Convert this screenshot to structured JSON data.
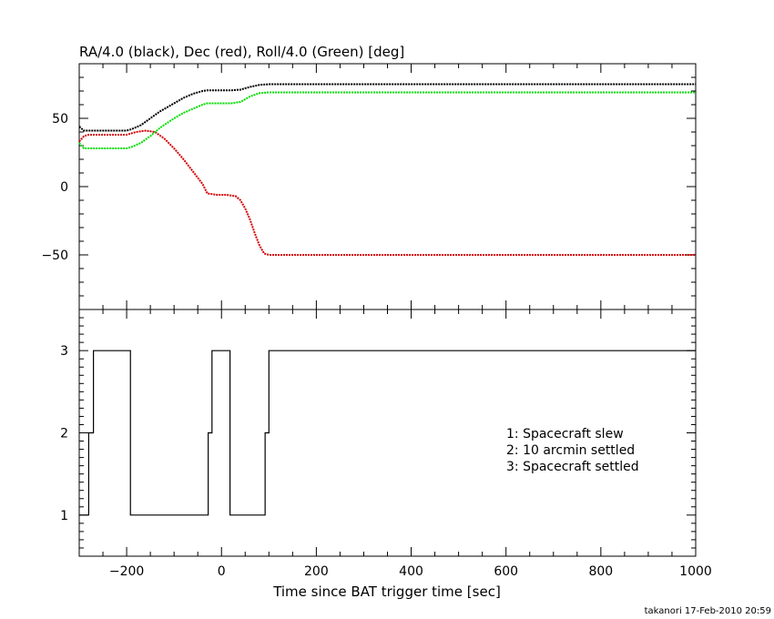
{
  "chart_data": [
    {
      "type": "line",
      "title": "RA/4.0 (black), Dec (red), Roll/4.0 (Green) [deg]",
      "xlabel": "",
      "ylabel": "",
      "xlim": [
        -300,
        1000
      ],
      "ylim": [
        -90,
        90
      ],
      "yticks": [
        50,
        0,
        -50
      ],
      "grid": false,
      "series": [
        {
          "color": "#000000",
          "x": [
            -300,
            -290,
            -280,
            -200,
            -190,
            -170,
            -150,
            -130,
            -100,
            -80,
            -60,
            -40,
            -30,
            -20,
            0,
            20,
            40,
            50,
            60,
            80,
            100,
            200,
            400,
            600,
            800,
            1000
          ],
          "y": [
            44,
            41,
            41,
            41,
            42,
            45,
            50,
            55,
            61,
            65,
            68,
            70,
            70.5,
            70.5,
            70.5,
            70.5,
            71,
            72,
            73,
            74.5,
            75,
            75,
            75,
            75,
            75,
            75
          ]
        },
        {
          "color": "#d40000",
          "x": [
            -300,
            -290,
            -280,
            -200,
            -180,
            -160,
            -140,
            -120,
            -100,
            -80,
            -60,
            -40,
            -30,
            -10,
            10,
            30,
            40,
            50,
            60,
            70,
            80,
            90,
            100,
            200,
            400,
            600,
            800,
            1000
          ],
          "y": [
            33,
            37,
            38,
            38,
            40,
            41,
            40,
            35,
            28,
            20,
            11,
            2,
            -5,
            -6,
            -6,
            -7,
            -10,
            -16,
            -24,
            -34,
            -43,
            -49,
            -50,
            -50,
            -50,
            -50,
            -50,
            -50
          ]
        },
        {
          "color": "#00dd00",
          "x": [
            -300,
            -290,
            -280,
            -200,
            -190,
            -170,
            -150,
            -130,
            -100,
            -80,
            -60,
            -40,
            -30,
            -20,
            0,
            20,
            40,
            50,
            60,
            80,
            100,
            200,
            400,
            600,
            800,
            1000
          ],
          "y": [
            32,
            28,
            28,
            28,
            29,
            32,
            37,
            43,
            50,
            54,
            57,
            60,
            61,
            61,
            61,
            61,
            62,
            64,
            66,
            68.5,
            69,
            69,
            69,
            69,
            69,
            69
          ]
        }
      ]
    },
    {
      "type": "line",
      "title": "",
      "xlabel": "Time since BAT trigger time [sec]",
      "ylabel": "",
      "xlim": [
        -300,
        1000
      ],
      "ylim": [
        0.5,
        3.5
      ],
      "xticks": [
        -200,
        0,
        200,
        400,
        600,
        800,
        1000
      ],
      "yticks": [
        3,
        2,
        1
      ],
      "grid": false,
      "series": [
        {
          "color": "#000000",
          "step": true,
          "x": [
            -300,
            -280,
            -270,
            -192,
            -28,
            -20,
            18,
            92,
            100,
            1000
          ],
          "y": [
            1,
            2,
            3,
            1,
            2,
            3,
            1,
            2,
            3,
            3
          ]
        }
      ],
      "legend": [
        "1: Spacecraft slew",
        "2: 10 arcmin settled",
        "3: Spacecraft settled"
      ]
    }
  ],
  "footer": "takanori 17-Feb-2010 20:59"
}
